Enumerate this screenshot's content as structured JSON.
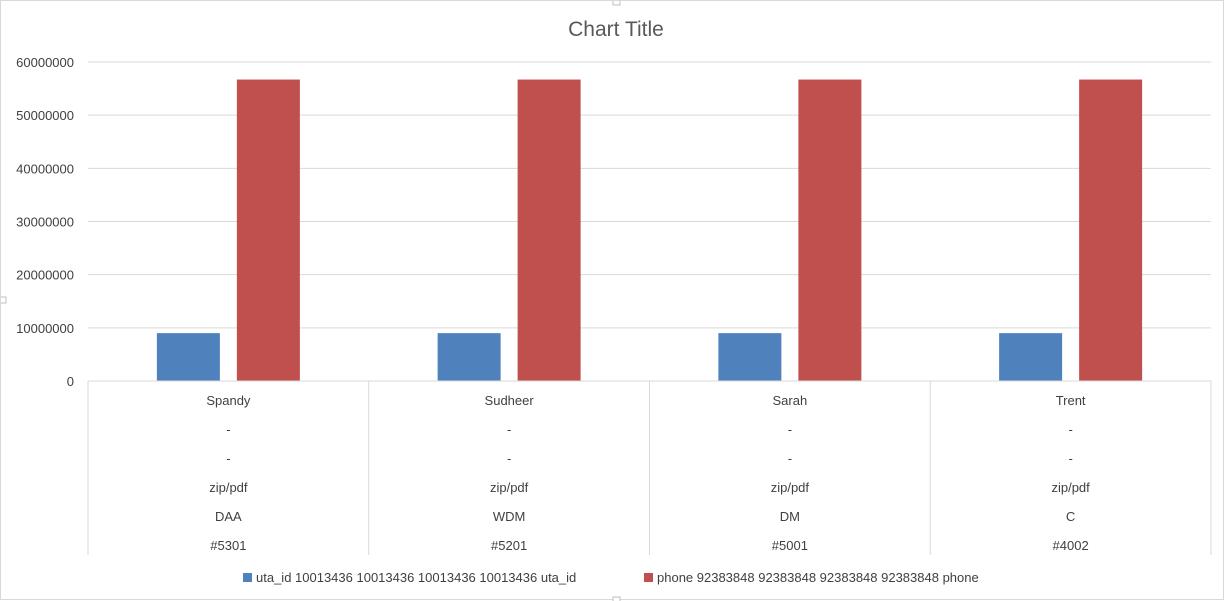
{
  "chart_data": {
    "type": "bar",
    "title": "Chart Title",
    "categories": [
      [
        "Spandy",
        "-",
        "-",
        "zip/pdf",
        "DAA",
        "#5301"
      ],
      [
        "Sudheer",
        "-",
        "-",
        "zip/pdf",
        "WDM",
        "#5201"
      ],
      [
        "Sarah",
        "-",
        "-",
        "zip/pdf",
        "DM",
        "#5001"
      ],
      [
        "Trent",
        "-",
        "-",
        "zip/pdf",
        "C",
        "#4002"
      ]
    ],
    "series": [
      {
        "name": "uta_id 10013436 10013436 10013436 10013436 uta_id",
        "color": "#4F81BD",
        "values": [
          9000000,
          9000000,
          9000000,
          9000000
        ]
      },
      {
        "name": "phone 92383848 92383848 92383848 92383848 phone",
        "color": "#C0504D",
        "values": [
          56700000,
          56700000,
          56700000,
          56700000
        ]
      }
    ],
    "y_ticks": [
      "0",
      "10000000",
      "20000000",
      "30000000",
      "40000000",
      "50000000",
      "60000000"
    ],
    "ylim": [
      0,
      60000000
    ],
    "grid": true,
    "legend_position": "bottom"
  }
}
